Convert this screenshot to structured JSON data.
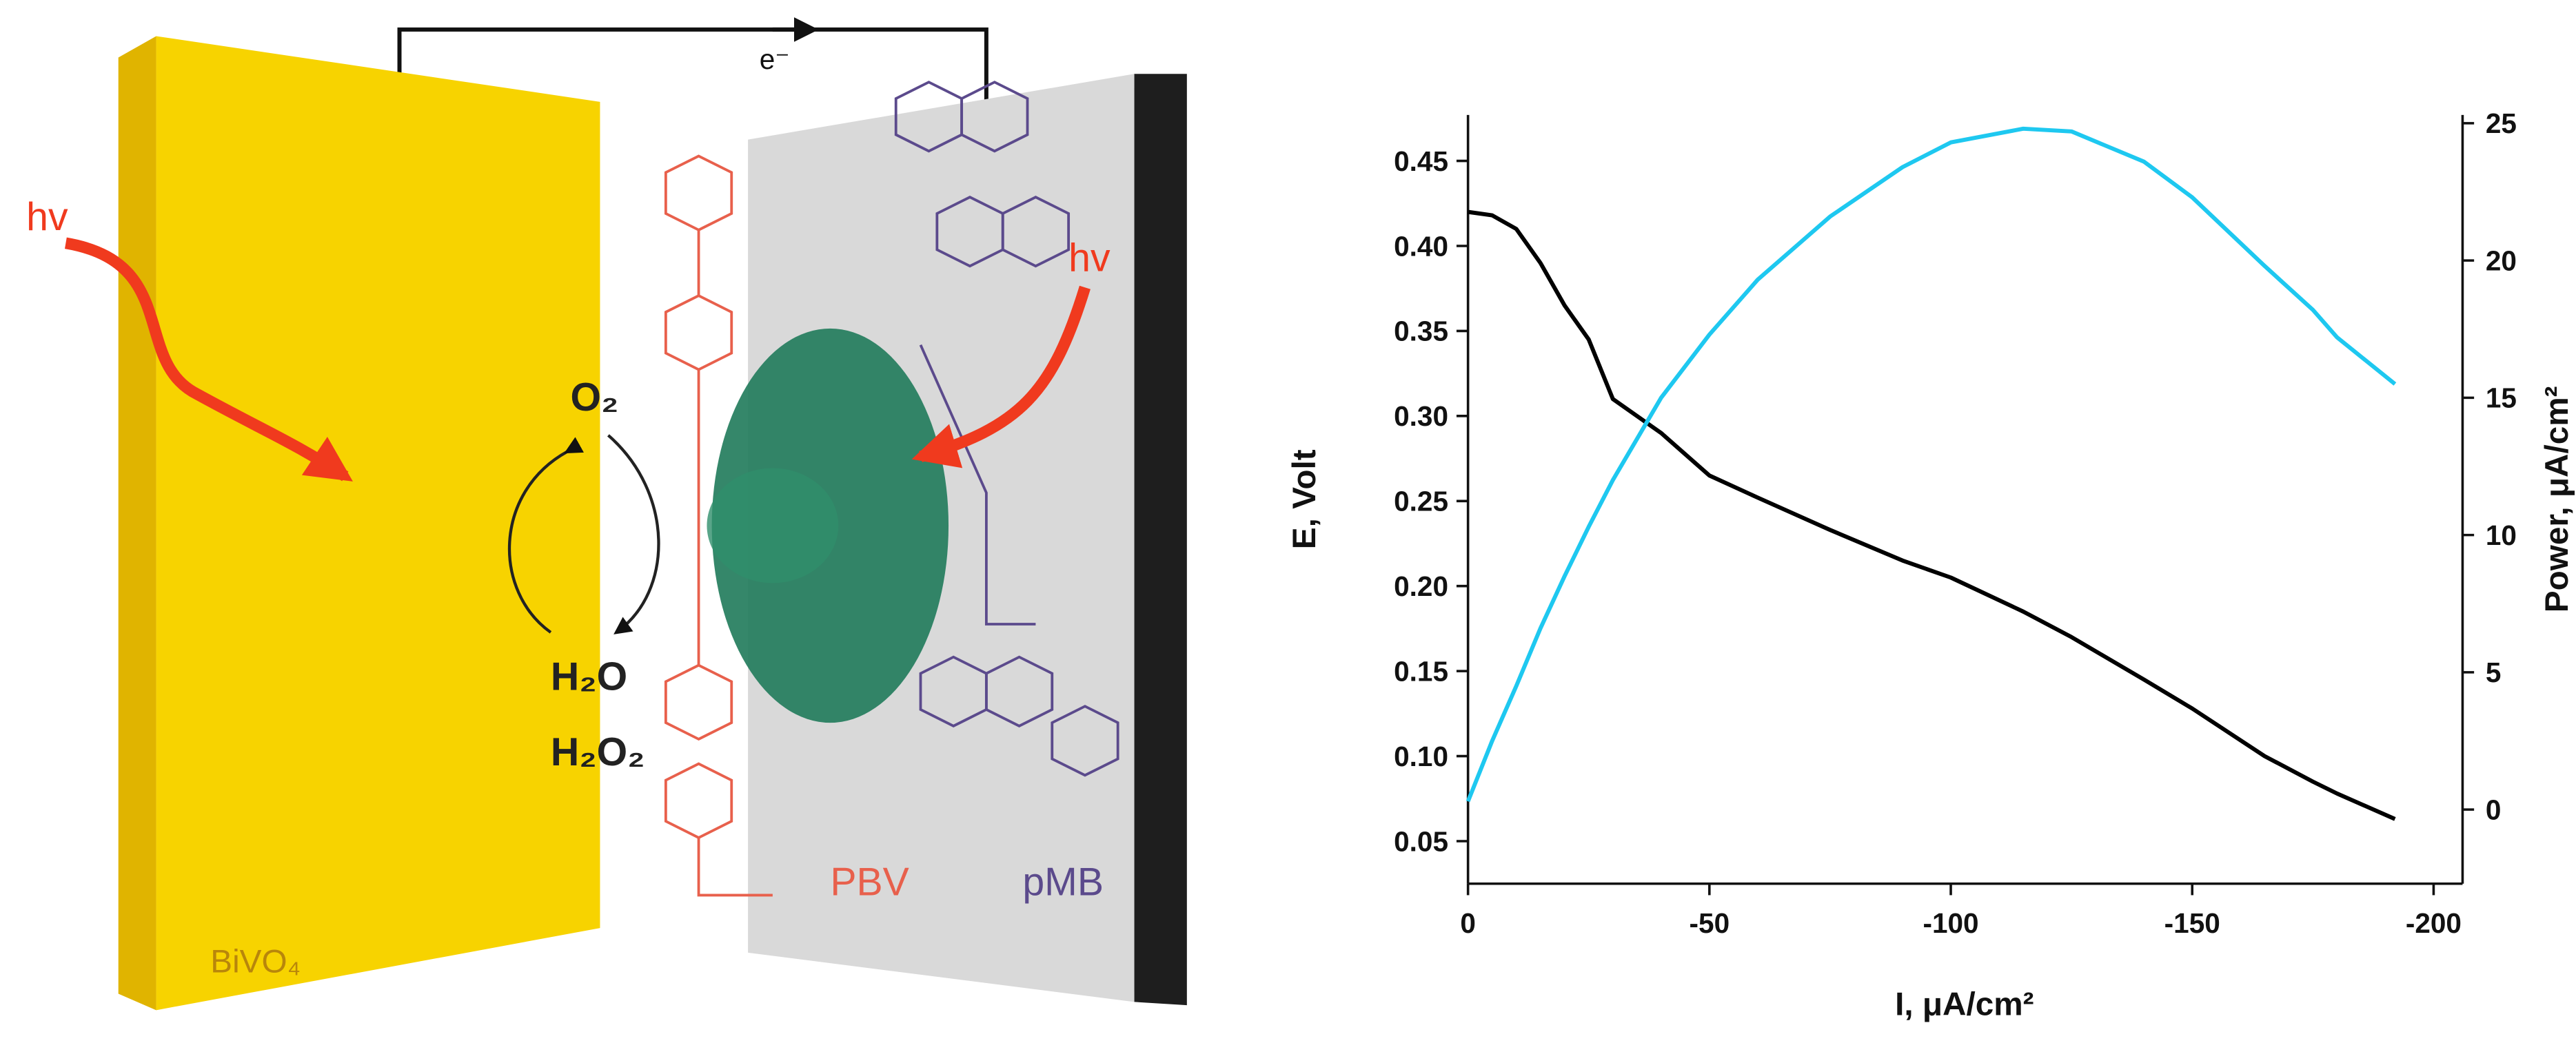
{
  "diagram": {
    "electron": "e⁻",
    "light_left": "hv",
    "light_right": "hv",
    "oxygen": "O₂",
    "water": "H₂O",
    "peroxide": "H₂O₂",
    "anode": "BiVO₄",
    "mediator_left": "PBV",
    "mediator_right": "pMB"
  },
  "chart_data": {
    "type": "line",
    "x_label": "I, μA/cm²",
    "y_label": "E, Volt",
    "y2_label": "Power, μA/cm²",
    "x": [
      0,
      -5,
      -10,
      -15,
      -20,
      -25,
      -30,
      -40,
      -50,
      -60,
      -75,
      -90,
      -100,
      -115,
      -125,
      -140,
      -150,
      -165,
      -175,
      -180,
      -192
    ],
    "series": [
      {
        "name": "E",
        "color": "#000000",
        "values": [
          0.42,
          0.418,
          0.41,
          0.39,
          0.365,
          0.345,
          0.31,
          0.29,
          0.265,
          0.252,
          0.233,
          0.215,
          0.205,
          0.185,
          0.17,
          0.145,
          0.128,
          0.1,
          0.085,
          0.078,
          0.063
        ]
      },
      {
        "name": "Power",
        "color": "#1ec8f0",
        "axis": "y2",
        "values": [
          0.3,
          2.5,
          4.5,
          6.6,
          8.5,
          10.3,
          12,
          15,
          17.3,
          19.3,
          21.6,
          23.4,
          24.3,
          24.8,
          24.7,
          23.6,
          22.3,
          19.8,
          18.2,
          17.2,
          15.5
        ]
      }
    ],
    "xlim": [
      0,
      -206
    ],
    "xticks": [
      0,
      -50,
      -100,
      -150,
      -200
    ],
    "ylim": [
      0.025,
      0.477
    ],
    "yticks": [
      {
        "value": 0.05,
        "label": "0.05"
      },
      {
        "value": 0.1,
        "label": "0.10"
      },
      {
        "value": 0.15,
        "label": "0.15"
      },
      {
        "value": 0.2,
        "label": "0.20"
      },
      {
        "value": 0.25,
        "label": "0.25"
      },
      {
        "value": 0.3,
        "label": "0.30"
      },
      {
        "value": 0.35,
        "label": "0.35"
      },
      {
        "value": 0.4,
        "label": "0.40"
      },
      {
        "value": 0.45,
        "label": "0.45"
      }
    ],
    "y2lim": [
      -2.7,
      25.3
    ],
    "y2ticks": [
      0,
      5,
      10,
      15,
      20,
      25
    ]
  }
}
